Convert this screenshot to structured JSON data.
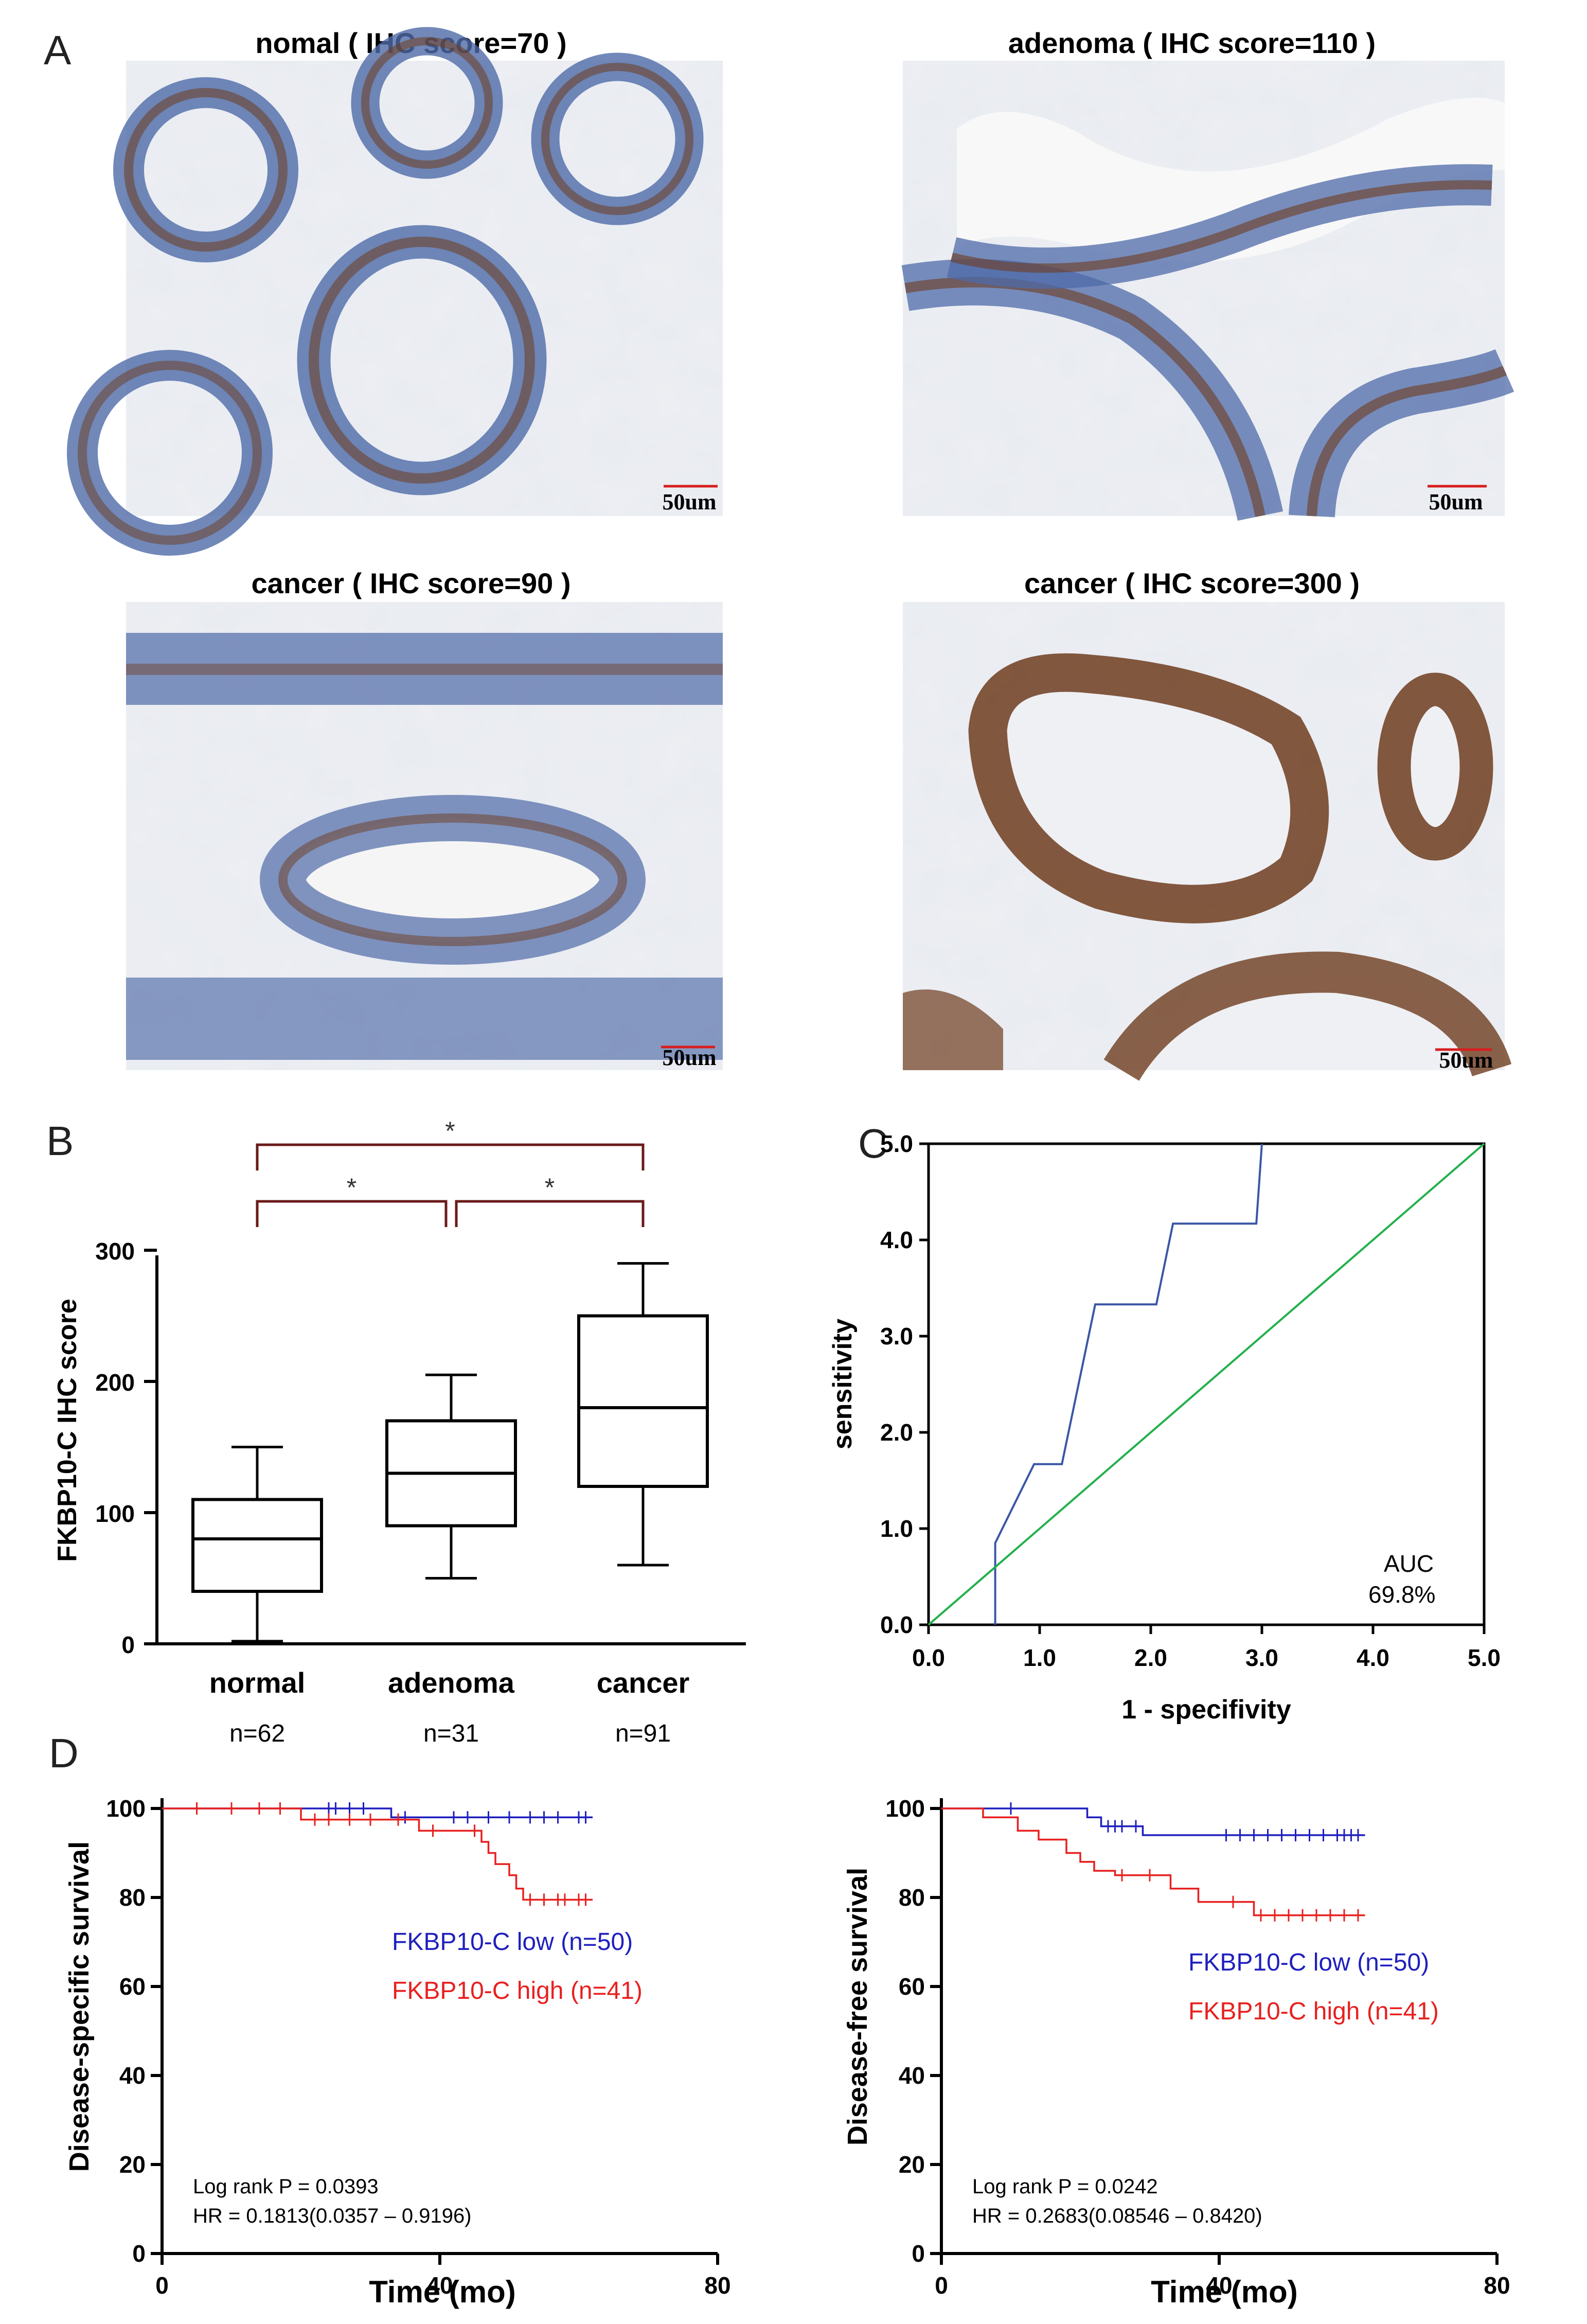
{
  "panel_letters": {
    "a": "A",
    "b": "B",
    "c": "C",
    "d": "D"
  },
  "colors": {
    "bracket": "#6b1a1a",
    "roc_curve": "#3a57a6",
    "reference_line": "#22b04b",
    "low_group": "#1f1fbf",
    "high_group": "#e8201f",
    "tissue_stain_brown": "#6e3c1e",
    "tissue_stain_blue": "#4e6aa8"
  },
  "micrographs": [
    {
      "title": "nomal ( IHC score=70 )",
      "scale_bar": "50um"
    },
    {
      "title": "adenoma ( IHC score=110 )",
      "scale_bar": "50um"
    },
    {
      "title": "cancer ( IHC score=90 )",
      "scale_bar": "50um"
    },
    {
      "title": "cancer ( IHC score=300 )",
      "scale_bar": "50um"
    }
  ],
  "chart_data": [
    {
      "type": "box",
      "ylabel": "FKBP10-C IHC score",
      "ylim": [
        0,
        300
      ],
      "yticks": [
        "0",
        "100",
        "200",
        "300"
      ],
      "categories": [
        "normal",
        "adenoma",
        "cancer"
      ],
      "counts": [
        "n=62",
        "n=31",
        "n=91"
      ],
      "boxes": [
        {
          "min": 2,
          "q1": 40,
          "median": 80,
          "q3": 110,
          "max": 150
        },
        {
          "min": 50,
          "q1": 90,
          "median": 130,
          "q3": 170,
          "max": 205
        },
        {
          "min": 60,
          "q1": 120,
          "median": 180,
          "q3": 250,
          "max": 290
        }
      ],
      "significance": [
        {
          "from": "normal",
          "to": "cancer",
          "label": "*"
        },
        {
          "from": "normal",
          "to": "adenoma",
          "label": "*"
        },
        {
          "from": "adenoma",
          "to": "cancer",
          "label": "*"
        }
      ]
    },
    {
      "type": "line",
      "xlabel": "1 - specifivity",
      "ylabel": "sensitivity",
      "xlim": [
        0,
        5
      ],
      "ylim": [
        0,
        5
      ],
      "xticks": [
        "0.0",
        "1.0",
        "2.0",
        "3.0",
        "4.0",
        "5.0"
      ],
      "yticks": [
        "0.0",
        "1.0",
        "2.0",
        "3.0",
        "4.0",
        "5.0"
      ],
      "annotation": [
        "AUC",
        "69.8%"
      ],
      "series": [
        {
          "x": [
            0.6,
            0.6,
            0.6,
            0.95,
            1.2,
            1.35,
            1.5,
            2.05,
            2.2,
            2.95,
            3.0
          ],
          "y": [
            0,
            0.85,
            0.85,
            1.67,
            1.67,
            2.5,
            3.33,
            3.33,
            4.17,
            4.17,
            5.0
          ]
        },
        {
          "x": [
            0,
            5
          ],
          "y": [
            0,
            5
          ]
        }
      ]
    },
    {
      "type": "line",
      "ylabel": "Disease-specific survival",
      "xlabel": "Time (mo)",
      "xlim": [
        0,
        80
      ],
      "ylim": [
        0,
        100
      ],
      "xticks": [
        "0",
        "40",
        "80"
      ],
      "yticks": [
        "0",
        "20",
        "40",
        "60",
        "80",
        "100"
      ],
      "legend": [
        "FKBP10-C low (n=50)",
        "FKBP10-C high (n=41)"
      ],
      "stats": [
        "Log rank P = 0.0393",
        "HR = 0.1813(0.0357 – 0.9196)"
      ],
      "series": [
        {
          "name": "FKBP10-C low (n=50)",
          "x": [
            0,
            33,
            62
          ],
          "y": [
            100,
            98,
            98
          ],
          "censor": [
            24,
            25,
            27,
            29,
            35,
            42,
            44,
            47,
            50,
            53,
            55,
            57,
            60,
            61
          ]
        },
        {
          "name": "FKBP10-C high (n=41)",
          "x": [
            0,
            20,
            37,
            46,
            47,
            48,
            50,
            51,
            52,
            62
          ],
          "y": [
            100,
            97.5,
            95,
            92.5,
            90,
            87.5,
            85,
            82,
            79.5,
            79.5
          ],
          "censor": [
            5,
            10,
            14,
            17,
            22,
            24,
            27,
            30,
            34,
            39,
            45,
            53,
            55,
            57,
            58,
            60,
            61
          ]
        }
      ]
    },
    {
      "type": "line",
      "ylabel": "Disease-free survival",
      "xlabel": "Time (mo)",
      "xlim": [
        0,
        80
      ],
      "ylim": [
        0,
        100
      ],
      "xticks": [
        "0",
        "40",
        "80"
      ],
      "yticks": [
        "0",
        "20",
        "40",
        "60",
        "80",
        "100"
      ],
      "legend": [
        "FKBP10-C low (n=50)",
        "FKBP10-C high (n=41)"
      ],
      "stats": [
        "Log rank P = 0.0242",
        "HR = 0.2683(0.08546 – 0.8420)"
      ],
      "series": [
        {
          "name": "FKBP10-C low (n=50)",
          "x": [
            0,
            21,
            23,
            29,
            61
          ],
          "y": [
            100,
            98,
            96,
            94,
            94
          ],
          "censor": [
            10,
            24,
            25,
            26,
            28,
            41,
            43,
            45,
            47,
            49,
            51,
            53,
            55,
            57,
            58,
            59,
            60
          ]
        },
        {
          "name": "FKBP10-C high (n=41)",
          "x": [
            0,
            6,
            11,
            14,
            18,
            20,
            22,
            25,
            33,
            37,
            45,
            61
          ],
          "y": [
            100,
            98,
            95,
            93,
            90,
            88,
            86,
            85,
            82,
            79,
            76,
            76
          ],
          "censor": [
            26,
            30,
            42,
            46,
            48,
            50,
            52,
            54,
            56,
            58,
            60
          ]
        }
      ]
    }
  ]
}
